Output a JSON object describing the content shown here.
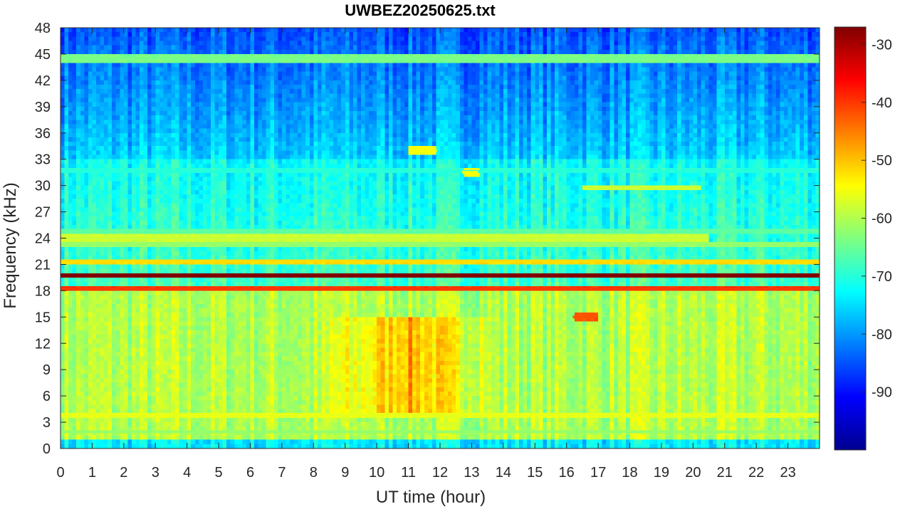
{
  "chart_data": {
    "type": "heatmap",
    "title": "UWBEZ20250625.txt",
    "xlabel": "UT time (hour)",
    "ylabel": "Frequency (kHz)",
    "xlim": [
      0,
      24
    ],
    "ylim": [
      0,
      48
    ],
    "x_ticks": [
      0,
      1,
      2,
      3,
      4,
      5,
      6,
      7,
      8,
      9,
      10,
      11,
      12,
      13,
      14,
      15,
      16,
      17,
      18,
      19,
      20,
      21,
      22,
      23
    ],
    "y_ticks": [
      0,
      3,
      6,
      9,
      12,
      15,
      18,
      21,
      24,
      27,
      30,
      33,
      36,
      39,
      42,
      45,
      48
    ],
    "colorbar": {
      "colormap": "jet",
      "clim": [
        -100,
        -27
      ],
      "ticks": [
        -90,
        -80,
        -70,
        -60,
        -50,
        -40,
        -30
      ]
    },
    "features": {
      "background_level_high_freq": -85,
      "background_level_mid_freq": -68,
      "background_level_low_freq": -60,
      "enhanced_region": {
        "x_range_hours": [
          8.5,
          13.5
        ],
        "freq_range_khz": [
          4,
          15
        ],
        "level": -48
      },
      "lines": [
        {
          "freq_khz": 19.8,
          "level": -27,
          "x_range_hours": [
            0,
            24
          ]
        },
        {
          "freq_khz": 18.2,
          "level": -40,
          "x_range_hours": [
            0,
            24
          ]
        },
        {
          "freq_khz": 21.4,
          "level": -52,
          "x_range_hours": [
            0,
            24
          ]
        },
        {
          "freq_khz": 23.4,
          "level": -62,
          "x_range_hours": [
            0,
            24
          ]
        },
        {
          "freq_khz": 24.0,
          "level": -58,
          "x_range_hours": [
            0,
            20.5
          ]
        },
        {
          "freq_khz": 24.9,
          "level": -66,
          "x_range_hours": [
            0,
            24
          ]
        },
        {
          "freq_khz": 44.5,
          "level": -64,
          "x_range_hours": [
            0,
            24
          ]
        },
        {
          "freq_khz": 31.6,
          "level": -70,
          "x_range_hours": [
            0,
            24
          ]
        },
        {
          "freq_khz": 3.9,
          "level": -56,
          "x_range_hours": [
            0,
            24
          ]
        },
        {
          "freq_khz": 1.9,
          "level": -62,
          "x_range_hours": [
            0,
            24
          ]
        },
        {
          "freq_khz": 29.8,
          "level": -58,
          "x_range_hours": [
            16.5,
            20.2
          ]
        },
        {
          "freq_khz": 34.0,
          "level": -55,
          "x_range_hours": [
            11.0,
            11.9
          ]
        },
        {
          "freq_khz": 31.5,
          "level": -55,
          "x_range_hours": [
            12.7,
            13.2
          ]
        },
        {
          "freq_khz": 15.0,
          "level": -42,
          "x_range_hours": [
            16.2,
            17.0
          ]
        }
      ]
    }
  }
}
